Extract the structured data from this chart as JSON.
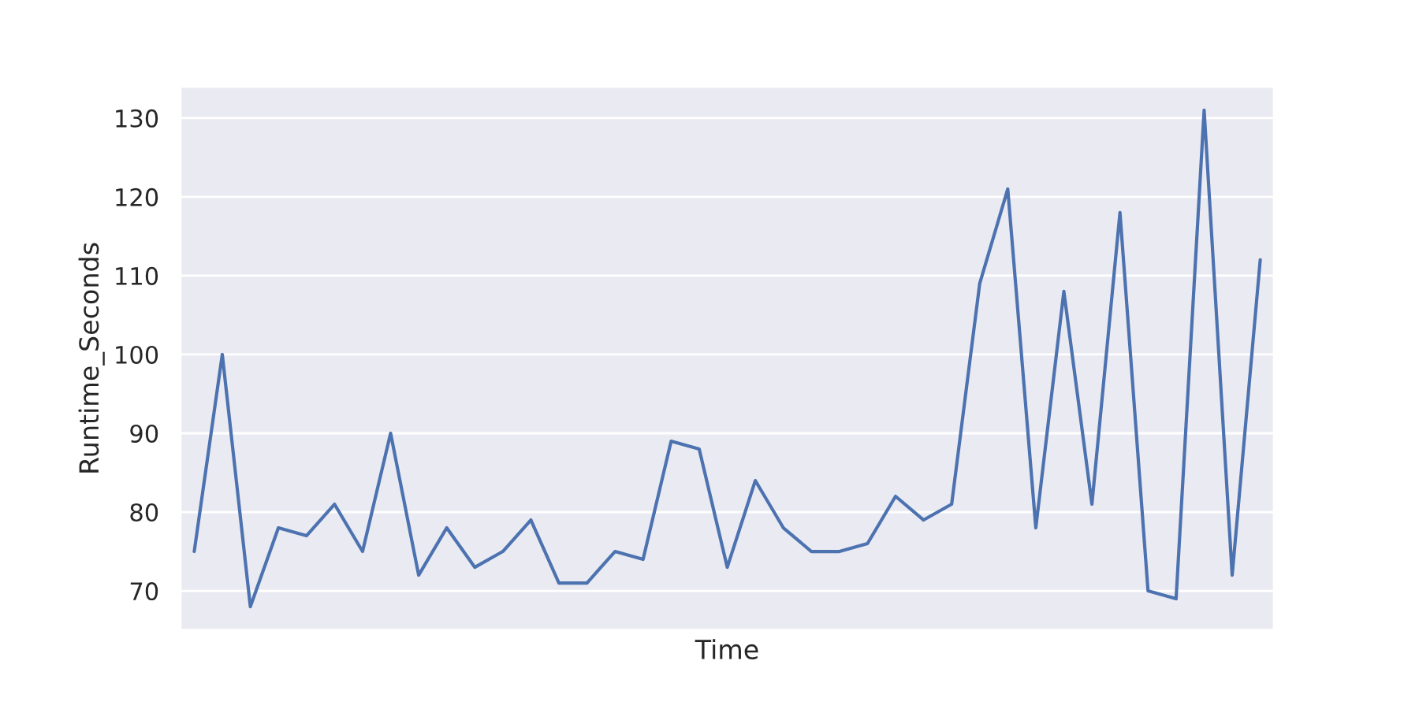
{
  "chart_data": {
    "type": "line",
    "xlabel": "Time",
    "ylabel": "Runtime_Seconds",
    "categories": [
      null,
      null,
      null,
      null,
      null,
      null,
      null,
      null,
      null,
      null,
      null,
      null,
      null,
      null,
      null,
      null,
      null,
      null,
      null,
      null,
      null,
      null,
      null,
      null,
      null,
      null,
      null,
      null,
      null,
      null,
      null,
      null,
      null,
      null,
      null,
      null,
      null,
      null,
      null
    ],
    "series": [
      {
        "color": "#4c72b0",
        "values": [
          75,
          100,
          68,
          78,
          77,
          81,
          75,
          90,
          72,
          78,
          73,
          75,
          79,
          71,
          71,
          75,
          74,
          89,
          88,
          73,
          84,
          78,
          75,
          75,
          76,
          82,
          79,
          81,
          109,
          121,
          78,
          108,
          81,
          118,
          70,
          69,
          131,
          72,
          112
        ]
      }
    ],
    "ylim": [
      65,
      134
    ],
    "yticks": [
      70,
      80,
      90,
      100,
      110,
      120,
      130
    ],
    "grid": "y",
    "tick_labels": "y"
  }
}
